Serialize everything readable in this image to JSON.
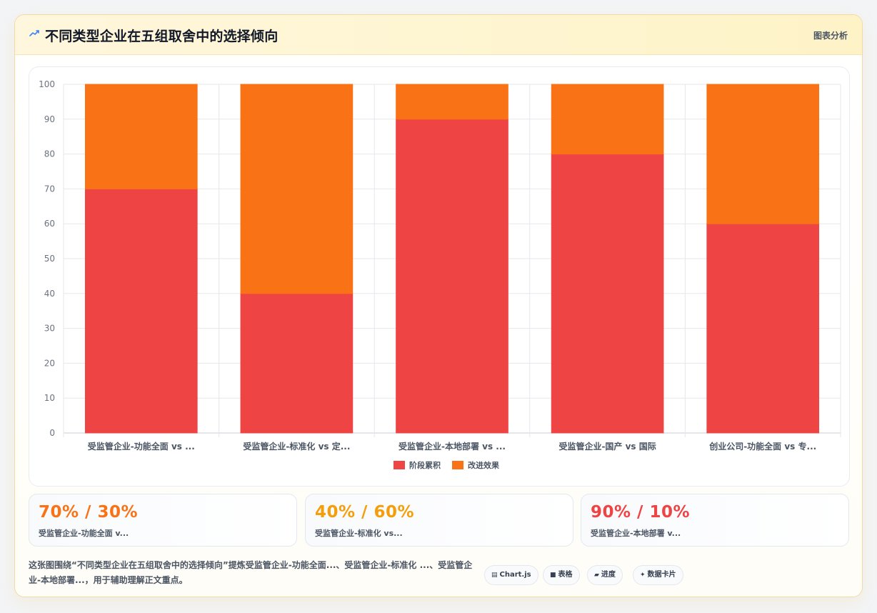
{
  "header": {
    "title": "不同类型企业在五组取舍中的选择倾向",
    "tag": "图表分析",
    "icon": "trend-icon"
  },
  "colors": {
    "series_a": "#ef4444",
    "series_b": "#f97316",
    "stat_1": "#f97316",
    "stat_2": "#f59e0b",
    "stat_3": "#ef4444"
  },
  "chart_data": {
    "type": "bar",
    "stacked": true,
    "categories": [
      "受监管企业-功能全面 vs ...",
      "受监管企业-标准化 vs 定...",
      "受监管企业-本地部署 vs ...",
      "受监管企业-国产 vs 国际",
      "创业公司-功能全面 vs 专..."
    ],
    "series": [
      {
        "name": "阶段累积",
        "values": [
          70,
          40,
          90,
          80,
          60
        ],
        "color": "#ef4444"
      },
      {
        "name": "改进效果",
        "values": [
          30,
          60,
          10,
          20,
          40
        ],
        "color": "#f97316"
      }
    ],
    "ylim": [
      0,
      100
    ],
    "yticks": [
      0,
      10,
      20,
      30,
      40,
      50,
      60,
      70,
      80,
      90,
      100
    ],
    "grid": true,
    "legend": "bottom"
  },
  "stats": [
    {
      "value": "70% / 30%",
      "label": "受监管企业-功能全面 v..."
    },
    {
      "value": "40% / 60%",
      "label": "受监管企业-标准化 vs..."
    },
    {
      "value": "90% / 10%",
      "label": "受监管企业-本地部署 v..."
    }
  ],
  "description": "这张图围绕“不同类型企业在五组取舍中的选择倾向”提炼受监管企业-功能全面...、受监管企业-标准化 ...、受监管企业-本地部署...，用于辅助理解正文重点。",
  "chips": [
    {
      "glyph": "▤",
      "label": "Chart.js"
    },
    {
      "glyph": "■",
      "label": "表格"
    },
    {
      "glyph": "▰",
      "label": "进度"
    },
    {
      "glyph": "✦",
      "label": "数据卡片"
    }
  ]
}
